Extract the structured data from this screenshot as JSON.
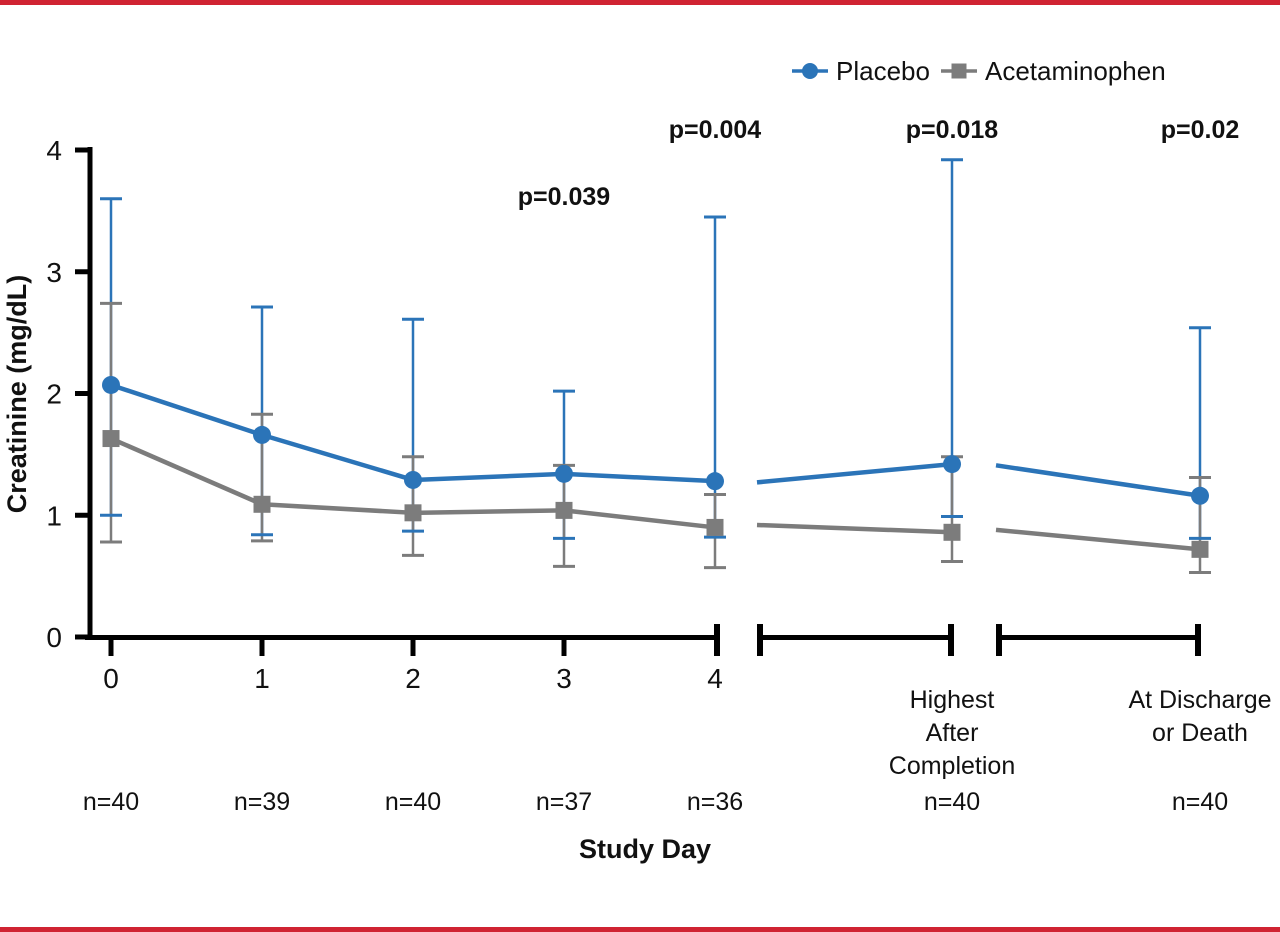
{
  "page": {
    "background": "#ffffff",
    "rule_color": "#d02332"
  },
  "chart_data": {
    "type": "line",
    "title": "",
    "ylabel": "Creatinine (mg/dL)",
    "xlabel": "Study Day",
    "ylim": [
      0,
      4
    ],
    "yticks": [
      "0",
      "1",
      "2",
      "3",
      "4"
    ],
    "x_categories": [
      "0",
      "1",
      "2",
      "3",
      "4",
      "Highest\nAfter\nCompletion",
      "At Discharge\nor Death"
    ],
    "n_labels": [
      "n=40",
      "n=39",
      "n=40",
      "n=37",
      "n=36",
      "n=40",
      "n=40"
    ],
    "axis_breaks": "x-axis broken after day 4 and after Highest After Completion",
    "legend_position": "top-right",
    "grid": false,
    "series": [
      {
        "name": "Placebo",
        "color": "#2b74b8",
        "marker": "circle",
        "means": [
          2.07,
          1.66,
          1.29,
          1.34,
          1.28,
          1.42,
          1.16
        ],
        "err_low": [
          1.0,
          0.84,
          0.87,
          0.81,
          0.82,
          0.99,
          0.81
        ],
        "err_high": [
          3.6,
          2.71,
          2.61,
          2.02,
          3.45,
          3.92,
          2.54
        ],
        "segment_line_starts": {
          "after_day4": 1.27,
          "after_highest": 1.41
        }
      },
      {
        "name": "Acetaminophen",
        "color": "#7c7c7c",
        "marker": "square",
        "means": [
          1.63,
          1.09,
          1.02,
          1.04,
          0.9,
          0.86,
          0.72
        ],
        "err_low": [
          0.78,
          0.79,
          0.67,
          0.58,
          0.57,
          0.62,
          0.53
        ],
        "err_high": [
          2.74,
          1.83,
          1.48,
          1.41,
          1.17,
          1.48,
          1.31
        ],
        "segment_line_starts": {
          "after_day4": 0.92,
          "after_highest": 0.88
        }
      }
    ],
    "p_values": [
      {
        "label": "p=0.039",
        "at_category": "3"
      },
      {
        "label": "p=0.004",
        "at_category": "4"
      },
      {
        "label": "p=0.018",
        "at_category": "Highest After Completion"
      },
      {
        "label": "p=0.02",
        "at_category": "At Discharge or Death"
      }
    ]
  }
}
